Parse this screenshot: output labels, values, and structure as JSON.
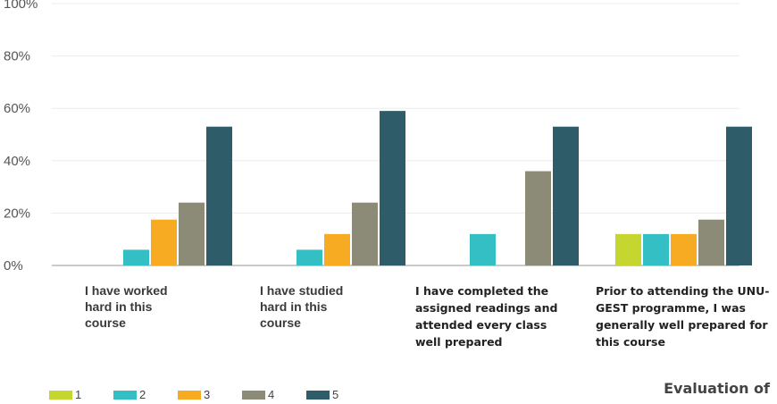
{
  "chart_data": {
    "type": "bar",
    "categories": [
      "I have worked hard in this course",
      "I have studied hard in this course",
      "I have completed the assigned readings and attended every class well prepared",
      "Prior to attending the UNU-GEST programme, I was generally well prepared for this course"
    ],
    "category_lines": [
      [
        "I have worked",
        "hard in this",
        "course"
      ],
      [
        "I have studied",
        "hard in this",
        "course"
      ],
      [
        "I have completed the",
        "assigned readings and",
        "attended every class",
        "well prepared"
      ],
      [
        "Prior to attending the UNU-",
        "GEST programme, I was",
        "generally well prepared for",
        "this course"
      ]
    ],
    "series": [
      {
        "name": "1",
        "color": "#c5d630",
        "values": [
          0,
          0,
          0,
          12
        ]
      },
      {
        "name": "2",
        "color": "#34bfc4",
        "values": [
          6,
          6,
          12,
          12
        ]
      },
      {
        "name": "3",
        "color": "#f6ab22",
        "values": [
          17.5,
          12,
          0,
          12
        ]
      },
      {
        "name": "4",
        "color": "#8b8b78",
        "values": [
          24,
          24,
          36,
          17.5
        ]
      },
      {
        "name": "5",
        "color": "#2e5c69",
        "values": [
          53,
          59,
          53,
          53
        ]
      }
    ],
    "yticks": [
      "0%",
      "20%",
      "40%",
      "60%",
      "80%",
      "100%"
    ],
    "ylim": [
      0,
      100
    ],
    "grid": true,
    "legend_position": "bottom-left"
  },
  "footer_text": "Evaluation of"
}
